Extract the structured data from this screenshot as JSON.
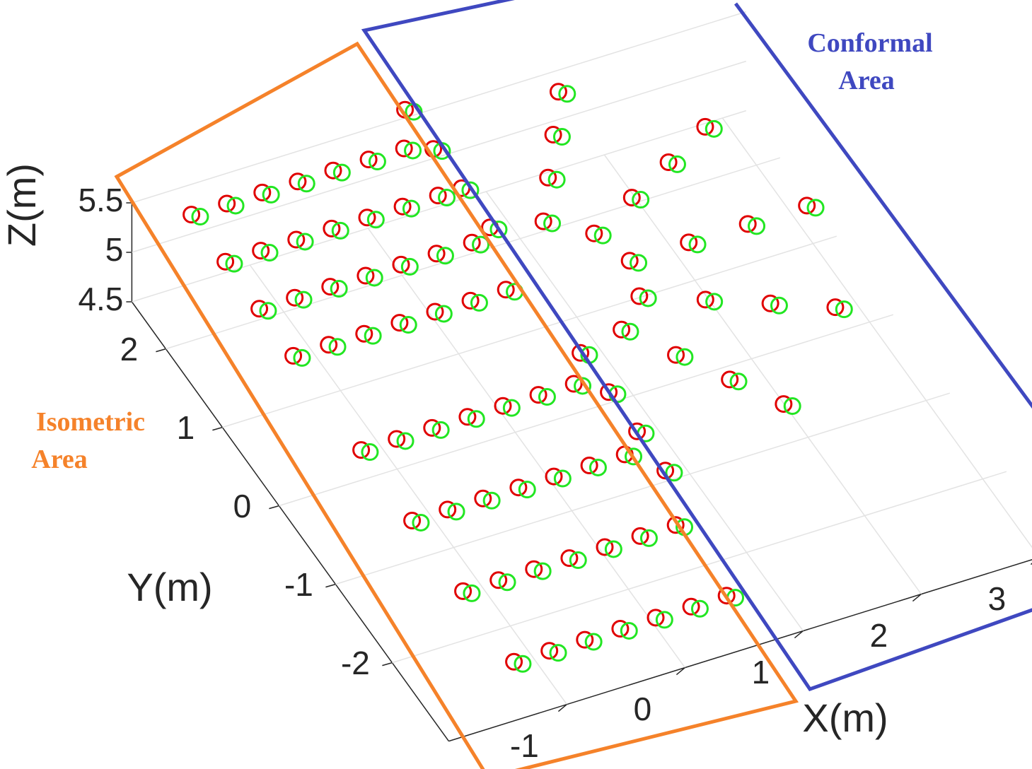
{
  "chart_data": {
    "type": "scatter3d",
    "xlabel": "X(m)",
    "ylabel": "Y(m)",
    "zlabel": "Z(m)",
    "xlim": [
      -2,
      3.2
    ],
    "ylim": [
      -3,
      2.6
    ],
    "zlim": [
      4.5,
      5.5
    ],
    "xticks": [
      -1,
      0,
      1,
      2,
      3
    ],
    "yticks": [
      -2,
      -1,
      0,
      1,
      2
    ],
    "zticks": [
      4.5,
      5,
      5.5
    ],
    "grid": true,
    "annotations": [
      {
        "lines": [
          "Conformal",
          "Area"
        ],
        "color": "#3f48c0"
      },
      {
        "lines": [
          "Isometric",
          "Area"
        ],
        "color": "#f5822a"
      }
    ],
    "series": [
      {
        "color": "#e00000",
        "x": [
          -1.4,
          -1.1,
          -0.8,
          -0.5,
          -0.2,
          0.1,
          0.4,
          -1.4,
          -1.1,
          -0.8,
          -0.5,
          -0.2,
          0.1,
          0.4,
          -1.4,
          -1.1,
          -0.8,
          -0.5,
          -0.2,
          0.1,
          0.4,
          -1.4,
          -1.1,
          -0.8,
          -0.5,
          -0.2,
          0.1,
          0.4,
          -1.4,
          -1.1,
          -0.8,
          -0.5,
          -0.2,
          0.1,
          0.4,
          -1.4,
          -1.1,
          -0.8,
          -0.5,
          -0.2,
          0.1,
          0.4,
          -1.4,
          -1.1,
          -0.8,
          -0.5,
          -0.2,
          0.1,
          0.4,
          -1.4,
          -1.1,
          -0.8,
          -0.5,
          -0.2,
          0.1,
          0.4,
          0.6,
          0.6,
          0.6,
          0.6,
          1.0,
          1.25,
          1.5,
          1.75,
          1.29,
          1.73,
          2.16,
          2.59,
          1.4,
          1.9,
          2.4,
          2.9,
          1.29,
          1.73,
          2.16,
          2.59,
          1.0,
          1.25,
          1.5,
          1.75,
          0.6,
          0.6,
          0.6,
          0.6
        ],
        "y": [
          1.0,
          1.0,
          1.0,
          1.0,
          1.0,
          1.0,
          1.0,
          1.6,
          1.6,
          1.6,
          1.6,
          1.6,
          1.6,
          1.6,
          2.2,
          2.2,
          2.2,
          2.2,
          2.2,
          2.2,
          2.2,
          2.8,
          2.8,
          2.8,
          2.8,
          2.8,
          2.8,
          2.8,
          -0.2,
          -0.2,
          -0.2,
          -0.2,
          -0.2,
          -0.2,
          -0.2,
          -1.1,
          -1.1,
          -1.1,
          -1.1,
          -1.1,
          -1.1,
          -1.1,
          -2.0,
          -2.0,
          -2.0,
          -2.0,
          -2.0,
          -2.0,
          -2.0,
          -2.9,
          -2.9,
          -2.9,
          -2.9,
          -2.9,
          -2.9,
          -2.9,
          1.7,
          2.2,
          2.7,
          3.2,
          1.59,
          2.03,
          2.46,
          2.89,
          1.3,
          1.55,
          1.8,
          2.05,
          0.9,
          0.9,
          0.9,
          0.9,
          0.5,
          0.25,
          0,
          -0.25,
          0.21,
          -0.23,
          -0.66,
          -1.09,
          0.1,
          -0.4,
          -0.9,
          -1.4
        ],
        "z": [
          5,
          5,
          5,
          5,
          5,
          5,
          5,
          5,
          5,
          5,
          5,
          5,
          5,
          5,
          5,
          5,
          5,
          5,
          5,
          5,
          5,
          5,
          5,
          5,
          5,
          5,
          5,
          5,
          5,
          5,
          5,
          5,
          5,
          5,
          5,
          5,
          5,
          5,
          5,
          5,
          5,
          5,
          5,
          5,
          5,
          5,
          5,
          5,
          5,
          5,
          5,
          5,
          5,
          5,
          5,
          5,
          5,
          5,
          5,
          5,
          5,
          5,
          5,
          5,
          5,
          5,
          5,
          5,
          5,
          5,
          5,
          5,
          5,
          5,
          5,
          5,
          5,
          5,
          5,
          5,
          5,
          5,
          5,
          5
        ]
      },
      {
        "color": "#22e622",
        "x": [
          -1.35,
          -1.05,
          -0.75,
          -0.45,
          -0.15,
          0.15,
          0.45,
          -1.35,
          -1.05,
          -0.75,
          -0.45,
          -0.15,
          0.15,
          0.45,
          -1.35,
          -1.05,
          -0.75,
          -0.45,
          -0.15,
          0.15,
          0.45,
          -1.35,
          -1.05,
          -0.75,
          -0.45,
          -0.15,
          0.15,
          0.45,
          -1.35,
          -1.05,
          -0.75,
          -0.45,
          -0.15,
          0.15,
          0.45,
          -1.35,
          -1.05,
          -0.75,
          -0.45,
          -0.15,
          0.15,
          0.45,
          -1.35,
          -1.05,
          -0.75,
          -0.45,
          -0.15,
          0.15,
          0.45,
          -1.35,
          -1.05,
          -0.75,
          -0.45,
          -0.15,
          0.15,
          0.45,
          0.65,
          0.65,
          0.65,
          0.65,
          1.05,
          1.3,
          1.55,
          1.8,
          1.34,
          1.78,
          2.21,
          2.64,
          1.45,
          1.95,
          2.45,
          2.95,
          1.34,
          1.78,
          2.21,
          2.64,
          1.05,
          1.3,
          1.55,
          1.8,
          0.65,
          0.65,
          0.65,
          0.65
        ],
        "y": [
          0.95,
          0.95,
          0.95,
          0.95,
          0.95,
          0.95,
          0.95,
          1.55,
          1.55,
          1.55,
          1.55,
          1.55,
          1.55,
          1.55,
          2.15,
          2.15,
          2.15,
          2.15,
          2.15,
          2.15,
          2.15,
          2.75,
          2.75,
          2.75,
          2.75,
          2.75,
          2.75,
          2.75,
          -0.25,
          -0.25,
          -0.25,
          -0.25,
          -0.25,
          -0.25,
          -0.25,
          -1.15,
          -1.15,
          -1.15,
          -1.15,
          -1.15,
          -1.15,
          -1.15,
          -2.05,
          -2.05,
          -2.05,
          -2.05,
          -2.05,
          -2.05,
          -2.05,
          -2.95,
          -2.95,
          -2.95,
          -2.95,
          -2.95,
          -2.95,
          -2.95,
          1.65,
          2.15,
          2.65,
          3.15,
          1.54,
          1.98,
          2.41,
          2.84,
          1.25,
          1.5,
          1.75,
          2,
          0.85,
          0.85,
          0.85,
          0.85,
          0.45,
          0.2,
          -0.05,
          -0.3,
          0.16,
          -0.28,
          -0.71,
          -1.14,
          0.05,
          -0.45,
          -0.95,
          -1.45
        ],
        "z": [
          5,
          5,
          5,
          5,
          5,
          5,
          5,
          5,
          5,
          5,
          5,
          5,
          5,
          5,
          5,
          5,
          5,
          5,
          5,
          5,
          5,
          5,
          5,
          5,
          5,
          5,
          5,
          5,
          5,
          5,
          5,
          5,
          5,
          5,
          5,
          5,
          5,
          5,
          5,
          5,
          5,
          5,
          5,
          5,
          5,
          5,
          5,
          5,
          5,
          5,
          5,
          5,
          5,
          5,
          5,
          5,
          5,
          5,
          5,
          5,
          5,
          5,
          5,
          5,
          5,
          5,
          5,
          5,
          5,
          5,
          5,
          5,
          5,
          5,
          5,
          5,
          5,
          5,
          5,
          5,
          5,
          5,
          5,
          5
        ]
      }
    ]
  }
}
